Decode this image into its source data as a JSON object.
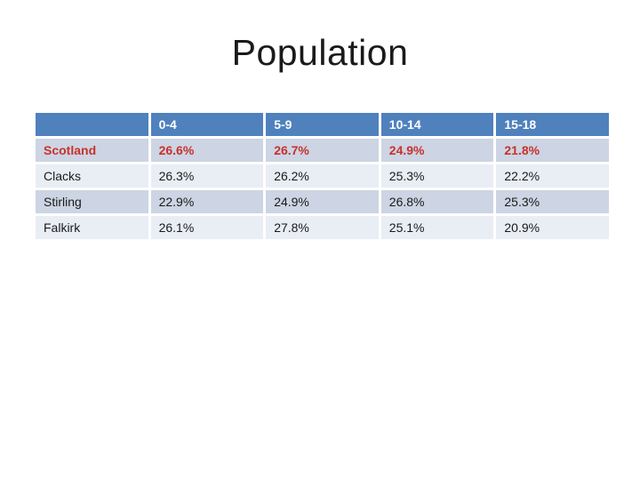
{
  "slide": {
    "title": "Population"
  },
  "table": {
    "header": [
      "",
      "0-4",
      "5-9",
      "10-14",
      "15-18"
    ],
    "rows": [
      {
        "label": "Scotland",
        "values": [
          "26.6%",
          "26.7%",
          "24.9%",
          "21.8%"
        ],
        "emphasis": true
      },
      {
        "label": "Clacks",
        "values": [
          "26.3%",
          "26.2%",
          "25.3%",
          "22.2%"
        ],
        "emphasis": false
      },
      {
        "label": "Stirling",
        "values": [
          "22.9%",
          "24.9%",
          "26.8%",
          "25.3%"
        ],
        "emphasis": false
      },
      {
        "label": "Falkirk",
        "values": [
          "26.1%",
          "27.8%",
          "25.1%",
          "20.9%"
        ],
        "emphasis": false
      }
    ],
    "colors": {
      "slide_bg": "#ffffff",
      "title_text": "#1a1a1a",
      "header_bg": "#4f81bd",
      "header_text": "#ffffff",
      "band_dark": "#cdd4e3",
      "band_light": "#e9edf4",
      "body_text": "#1a1a1a",
      "emphasis_text": "#c8312b"
    }
  }
}
